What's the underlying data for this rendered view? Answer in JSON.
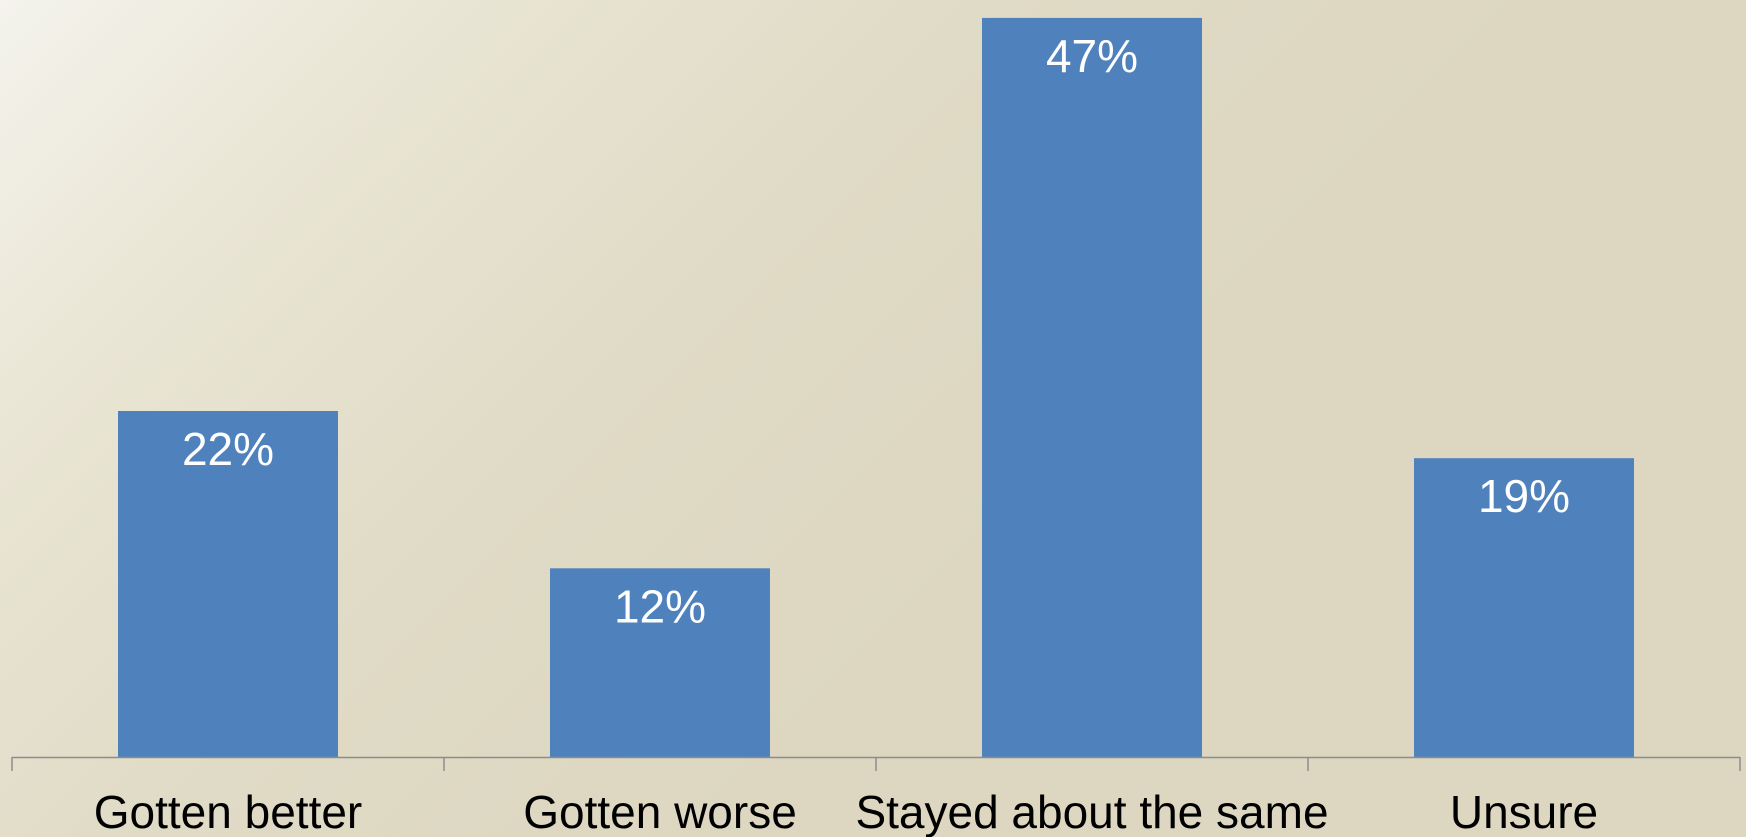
{
  "chart_data": {
    "type": "bar",
    "categories": [
      "Gotten better",
      "Gotten worse",
      "Stayed about the same",
      "Unsure"
    ],
    "values": [
      22,
      12,
      47,
      19
    ],
    "data_labels": [
      "22%",
      "12%",
      "47%",
      "19%"
    ],
    "unit": "%",
    "ylim": [
      0,
      47.5
    ],
    "grid": false,
    "legend": "none",
    "colors": {
      "bar": "#4f81bd",
      "data_label": "#ffffff",
      "axis": "#8c8c8c",
      "category_label": "#000000"
    }
  }
}
